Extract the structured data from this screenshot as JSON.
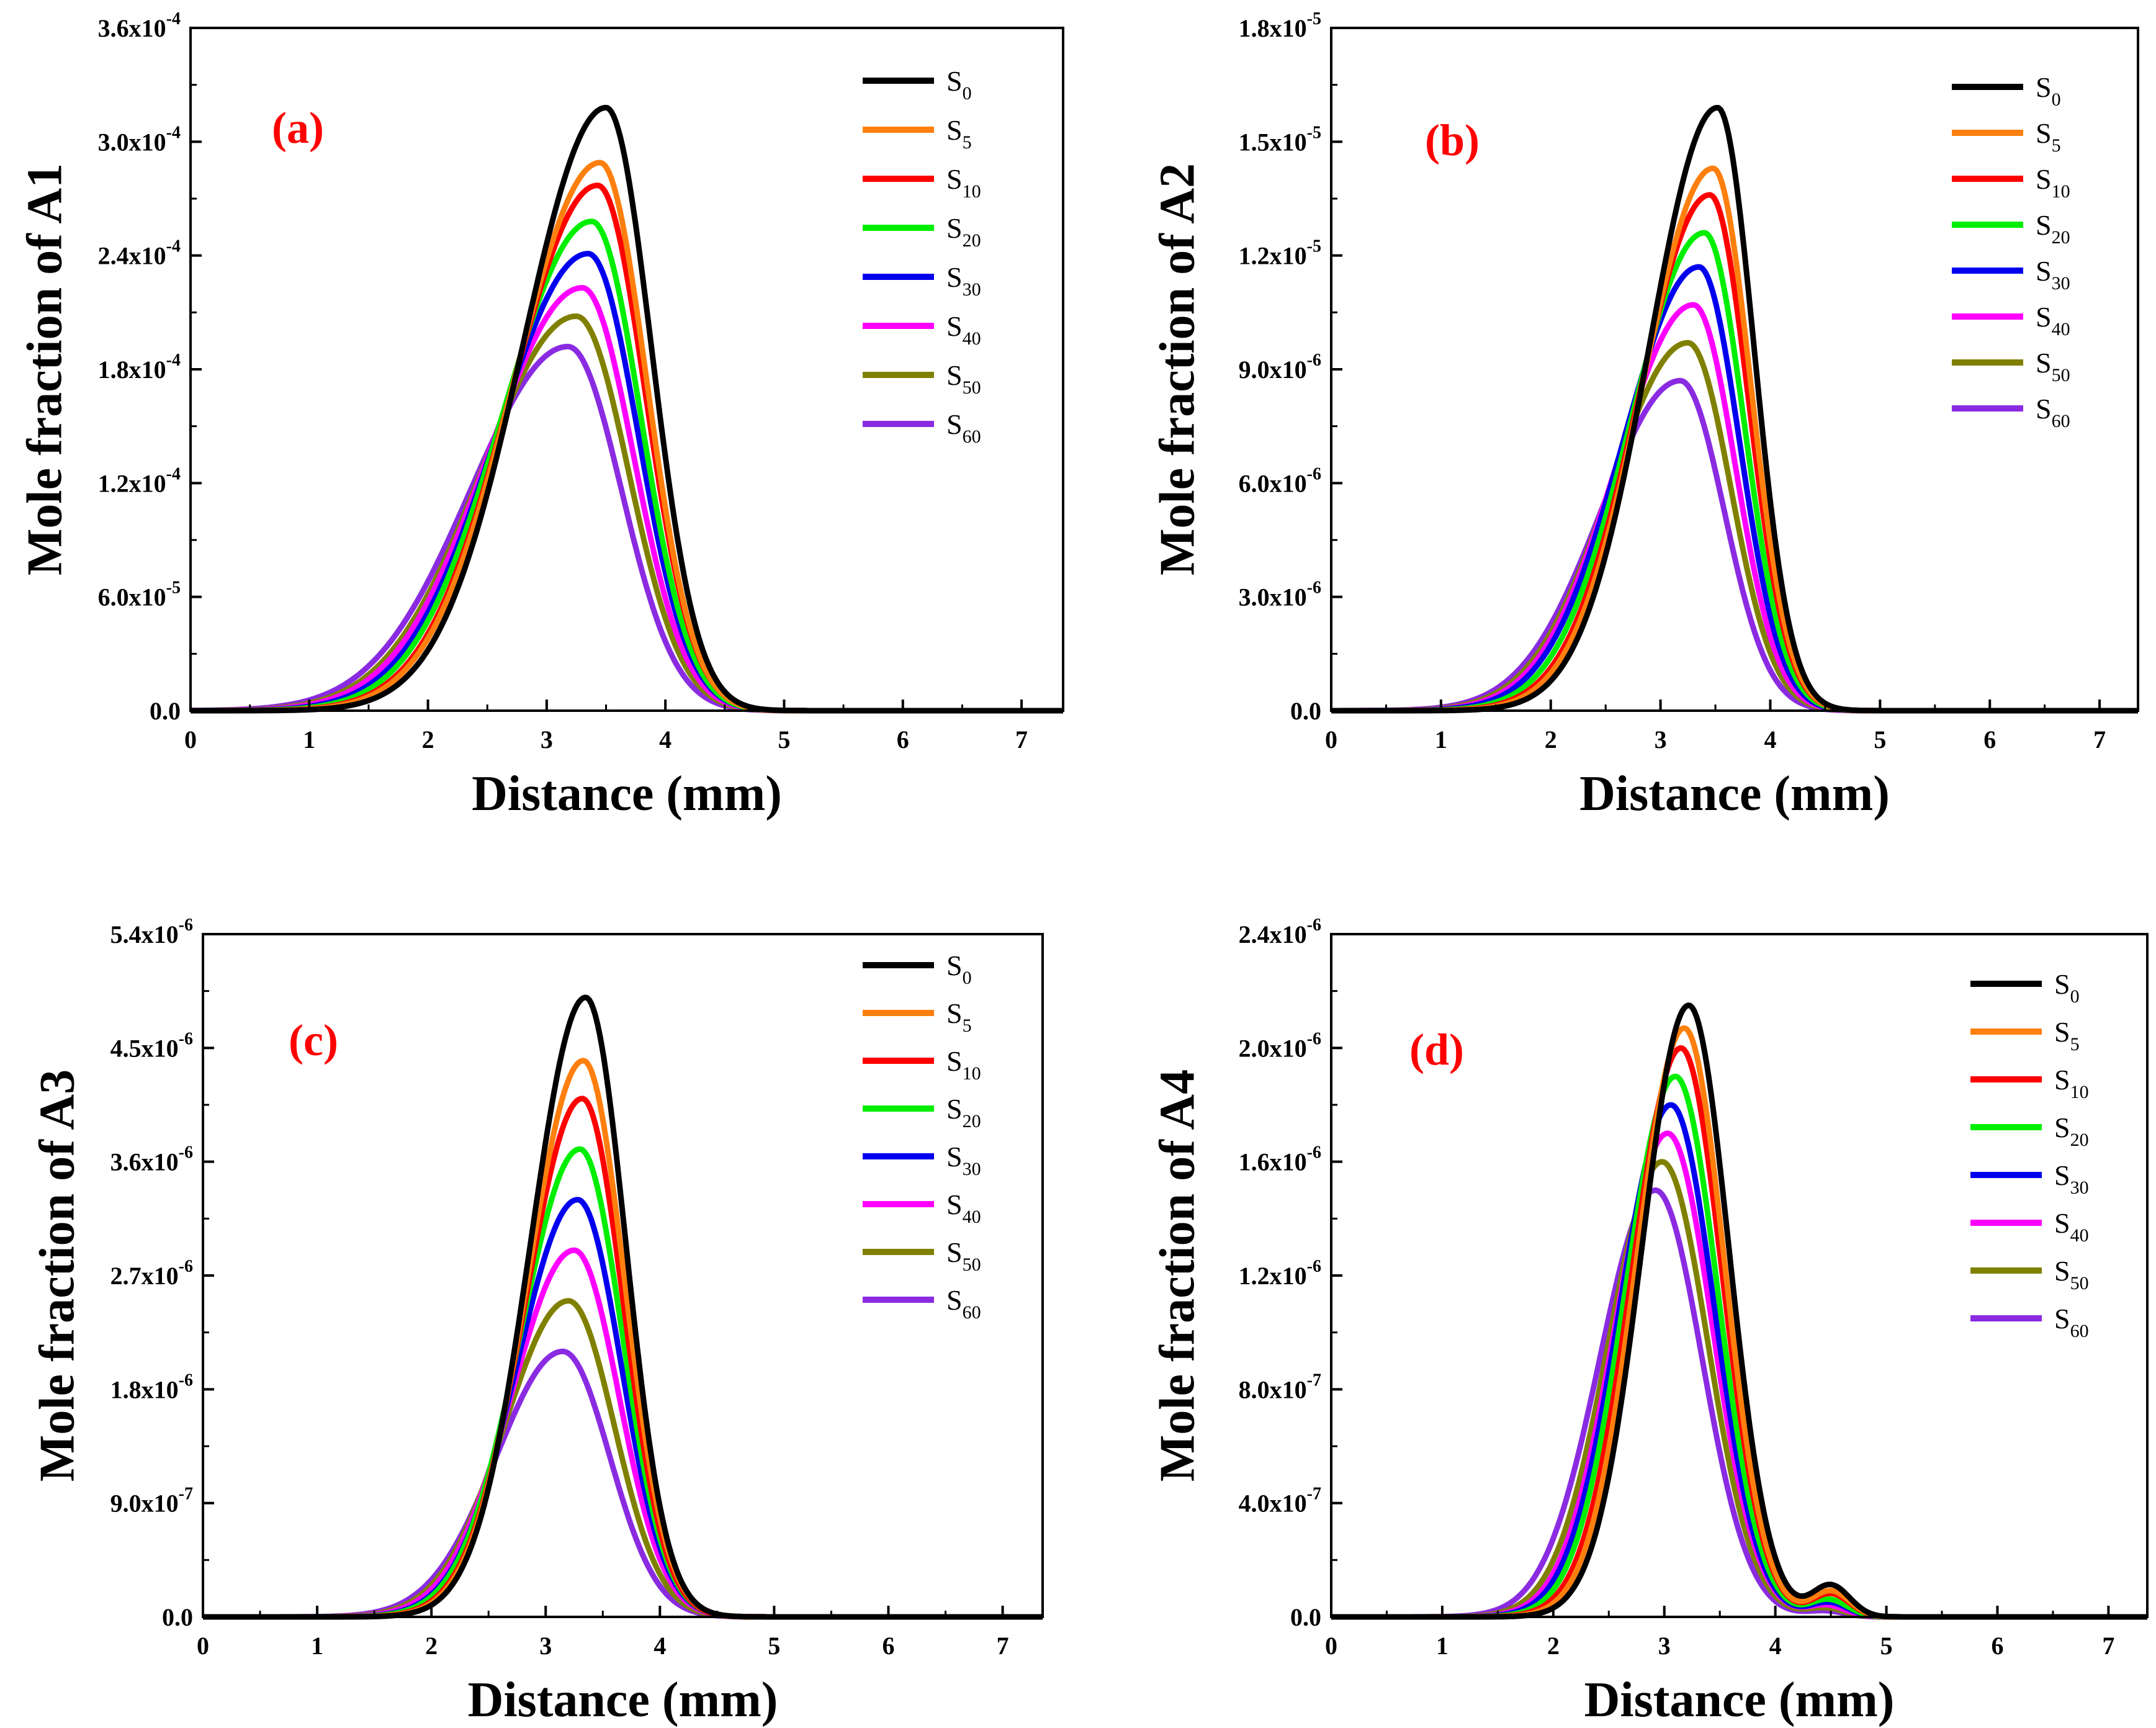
{
  "chart_data": [
    {
      "type": "line",
      "panel_label": "(a)",
      "xlabel": "Distance (mm)",
      "ylabel": "Mole fraction of A1",
      "xlim": [
        0,
        7.35
      ],
      "ylim": [
        0,
        0.00036
      ],
      "xticks": [
        "0",
        "1",
        "2",
        "3",
        "4",
        "5",
        "6",
        "7"
      ],
      "yticks": [
        {
          "value": 0,
          "base": "0.0",
          "exp": ""
        },
        {
          "value": 6e-05,
          "base": "6.0x10",
          "exp": "-5"
        },
        {
          "value": 0.00012,
          "base": "1.2x10",
          "exp": "-4"
        },
        {
          "value": 0.00018,
          "base": "1.8x10",
          "exp": "-4"
        },
        {
          "value": 0.00024,
          "base": "2.4x10",
          "exp": "-4"
        },
        {
          "value": 0.0003,
          "base": "3.0x10",
          "exp": "-4"
        },
        {
          "value": 0.00036,
          "base": "3.6x10",
          "exp": "-4"
        }
      ],
      "series": [
        {
          "name": "S0",
          "label": "S",
          "sub": "0",
          "color": "#000000",
          "peak_x": 3.5,
          "peak_y": 0.000318,
          "sigma_left": 0.7,
          "sigma_right": 0.38
        },
        {
          "name": "S5",
          "label": "S",
          "sub": "5",
          "color": "#ff7f0e",
          "peak_x": 3.45,
          "peak_y": 0.000289,
          "sigma_left": 0.72,
          "sigma_right": 0.39
        },
        {
          "name": "S10",
          "label": "S",
          "sub": "10",
          "color": "#ff0000",
          "peak_x": 3.43,
          "peak_y": 0.000277,
          "sigma_left": 0.73,
          "sigma_right": 0.4
        },
        {
          "name": "S20",
          "label": "S",
          "sub": "20",
          "color": "#00ee00",
          "peak_x": 3.38,
          "peak_y": 0.000258,
          "sigma_left": 0.75,
          "sigma_right": 0.41
        },
        {
          "name": "S30",
          "label": "S",
          "sub": "30",
          "color": "#0000ee",
          "peak_x": 3.35,
          "peak_y": 0.000241,
          "sigma_left": 0.77,
          "sigma_right": 0.42
        },
        {
          "name": "S40",
          "label": "S",
          "sub": "40",
          "color": "#ff00ff",
          "peak_x": 3.3,
          "peak_y": 0.000223,
          "sigma_left": 0.79,
          "sigma_right": 0.43
        },
        {
          "name": "S50",
          "label": "S",
          "sub": "50",
          "color": "#808000",
          "peak_x": 3.25,
          "peak_y": 0.000208,
          "sigma_left": 0.8,
          "sigma_right": 0.44
        },
        {
          "name": "S60",
          "label": "S",
          "sub": "60",
          "color": "#8a2be2",
          "peak_x": 3.18,
          "peak_y": 0.000192,
          "sigma_left": 0.82,
          "sigma_right": 0.45
        }
      ]
    },
    {
      "type": "line",
      "panel_label": "(b)",
      "xlabel": "Distance (mm)",
      "ylabel": "Mole fraction of A2",
      "xlim": [
        0,
        7.35
      ],
      "ylim": [
        0,
        1.8e-05
      ],
      "xticks": [
        "0",
        "1",
        "2",
        "3",
        "4",
        "5",
        "6",
        "7"
      ],
      "yticks": [
        {
          "value": 0,
          "base": "0.0",
          "exp": ""
        },
        {
          "value": 3e-06,
          "base": "3.0x10",
          "exp": "-6"
        },
        {
          "value": 6e-06,
          "base": "6.0x10",
          "exp": "-6"
        },
        {
          "value": 9e-06,
          "base": "9.0x10",
          "exp": "-6"
        },
        {
          "value": 1.2e-05,
          "base": "1.2x10",
          "exp": "-5"
        },
        {
          "value": 1.5e-05,
          "base": "1.5x10",
          "exp": "-5"
        },
        {
          "value": 1.8e-05,
          "base": "1.8x10",
          "exp": "-5"
        }
      ],
      "series": [
        {
          "name": "S0",
          "label": "S",
          "sub": "0",
          "color": "#000000",
          "peak_x": 3.52,
          "peak_y": 1.59e-05,
          "sigma_left": 0.62,
          "sigma_right": 0.33
        },
        {
          "name": "S5",
          "label": "S",
          "sub": "5",
          "color": "#ff7f0e",
          "peak_x": 3.48,
          "peak_y": 1.43e-05,
          "sigma_left": 0.64,
          "sigma_right": 0.34
        },
        {
          "name": "S10",
          "label": "S",
          "sub": "10",
          "color": "#ff0000",
          "peak_x": 3.45,
          "peak_y": 1.36e-05,
          "sigma_left": 0.65,
          "sigma_right": 0.35
        },
        {
          "name": "S20",
          "label": "S",
          "sub": "20",
          "color": "#00ee00",
          "peak_x": 3.4,
          "peak_y": 1.26e-05,
          "sigma_left": 0.67,
          "sigma_right": 0.36
        },
        {
          "name": "S30",
          "label": "S",
          "sub": "30",
          "color": "#0000ee",
          "peak_x": 3.35,
          "peak_y": 1.17e-05,
          "sigma_left": 0.69,
          "sigma_right": 0.37
        },
        {
          "name": "S40",
          "label": "S",
          "sub": "40",
          "color": "#ff00ff",
          "peak_x": 3.3,
          "peak_y": 1.07e-05,
          "sigma_left": 0.7,
          "sigma_right": 0.38
        },
        {
          "name": "S50",
          "label": "S",
          "sub": "50",
          "color": "#808000",
          "peak_x": 3.25,
          "peak_y": 9.7e-06,
          "sigma_left": 0.71,
          "sigma_right": 0.39
        },
        {
          "name": "S60",
          "label": "S",
          "sub": "60",
          "color": "#8a2be2",
          "peak_x": 3.18,
          "peak_y": 8.7e-06,
          "sigma_left": 0.72,
          "sigma_right": 0.4
        }
      ]
    },
    {
      "type": "line",
      "panel_label": "(c)",
      "xlabel": "Distance (mm)",
      "ylabel": "Mole fraction of A3",
      "xlim": [
        0,
        7.35
      ],
      "ylim": [
        0,
        5.4e-06
      ],
      "xticks": [
        "0",
        "1",
        "2",
        "3",
        "4",
        "5",
        "6",
        "7"
      ],
      "yticks": [
        {
          "value": 0,
          "base": "0.0",
          "exp": ""
        },
        {
          "value": 9e-07,
          "base": "9.0x10",
          "exp": "-7"
        },
        {
          "value": 1.8e-06,
          "base": "1.8x10",
          "exp": "-6"
        },
        {
          "value": 2.7e-06,
          "base": "2.7x10",
          "exp": "-6"
        },
        {
          "value": 3.6e-06,
          "base": "3.6x10",
          "exp": "-6"
        },
        {
          "value": 4.5e-06,
          "base": "4.5x10",
          "exp": "-6"
        },
        {
          "value": 5.4e-06,
          "base": "5.4x10",
          "exp": "-6"
        }
      ],
      "series": [
        {
          "name": "S0",
          "label": "S",
          "sub": "0",
          "color": "#000000",
          "peak_x": 3.35,
          "peak_y": 4.9e-06,
          "sigma_left": 0.48,
          "sigma_right": 0.35
        },
        {
          "name": "S5",
          "label": "S",
          "sub": "5",
          "color": "#ff7f0e",
          "peak_x": 3.33,
          "peak_y": 4.4e-06,
          "sigma_left": 0.49,
          "sigma_right": 0.36
        },
        {
          "name": "S10",
          "label": "S",
          "sub": "10",
          "color": "#ff0000",
          "peak_x": 3.32,
          "peak_y": 4.1e-06,
          "sigma_left": 0.5,
          "sigma_right": 0.36
        },
        {
          "name": "S20",
          "label": "S",
          "sub": "20",
          "color": "#00ee00",
          "peak_x": 3.3,
          "peak_y": 3.7e-06,
          "sigma_left": 0.52,
          "sigma_right": 0.37
        },
        {
          "name": "S30",
          "label": "S",
          "sub": "30",
          "color": "#0000ee",
          "peak_x": 3.28,
          "peak_y": 3.3e-06,
          "sigma_left": 0.53,
          "sigma_right": 0.38
        },
        {
          "name": "S40",
          "label": "S",
          "sub": "40",
          "color": "#ff00ff",
          "peak_x": 3.25,
          "peak_y": 2.9e-06,
          "sigma_left": 0.55,
          "sigma_right": 0.39
        },
        {
          "name": "S50",
          "label": "S",
          "sub": "50",
          "color": "#808000",
          "peak_x": 3.2,
          "peak_y": 2.5e-06,
          "sigma_left": 0.56,
          "sigma_right": 0.4
        },
        {
          "name": "S60",
          "label": "S",
          "sub": "60",
          "color": "#8a2be2",
          "peak_x": 3.15,
          "peak_y": 2.1e-06,
          "sigma_left": 0.58,
          "sigma_right": 0.41
        }
      ]
    },
    {
      "type": "line",
      "panel_label": "(d)",
      "xlabel": "Distance (mm)",
      "ylabel": "Mole fraction of A4",
      "xlim": [
        0,
        7.35
      ],
      "ylim": [
        0,
        2.4e-06
      ],
      "xticks": [
        "0",
        "1",
        "2",
        "3",
        "4",
        "5",
        "6",
        "7"
      ],
      "yticks": [
        {
          "value": 0,
          "base": "0.0",
          "exp": ""
        },
        {
          "value": 4e-07,
          "base": "4.0x10",
          "exp": "-7"
        },
        {
          "value": 8e-07,
          "base": "8.0x10",
          "exp": "-7"
        },
        {
          "value": 1.2e-06,
          "base": "1.2x10",
          "exp": "-6"
        },
        {
          "value": 1.6e-06,
          "base": "1.6x10",
          "exp": "-6"
        },
        {
          "value": 2e-06,
          "base": "2.0x10",
          "exp": "-6"
        },
        {
          "value": 2.4e-06,
          "base": "2.4x10",
          "exp": "-6"
        }
      ],
      "series": [
        {
          "name": "S0",
          "label": "S",
          "sub": "0",
          "color": "#000000",
          "peak_x": 3.22,
          "peak_y": 2.15e-06,
          "sigma_left": 0.42,
          "sigma_right": 0.36,
          "bump_x": 4.5,
          "bump_y": 1.1e-07
        },
        {
          "name": "S5",
          "label": "S",
          "sub": "5",
          "color": "#ff7f0e",
          "peak_x": 3.18,
          "peak_y": 2.07e-06,
          "sigma_left": 0.43,
          "sigma_right": 0.36,
          "bump_x": 4.5,
          "bump_y": 9e-08
        },
        {
          "name": "S10",
          "label": "S",
          "sub": "10",
          "color": "#ff0000",
          "peak_x": 3.15,
          "peak_y": 2e-06,
          "sigma_left": 0.44,
          "sigma_right": 0.37,
          "bump_x": 4.5,
          "bump_y": 8e-08
        },
        {
          "name": "S20",
          "label": "S",
          "sub": "20",
          "color": "#00ee00",
          "peak_x": 3.1,
          "peak_y": 1.9e-06,
          "sigma_left": 0.45,
          "sigma_right": 0.38,
          "bump_x": 4.48,
          "bump_y": 6e-08
        },
        {
          "name": "S30",
          "label": "S",
          "sub": "30",
          "color": "#0000ee",
          "peak_x": 3.06,
          "peak_y": 1.8e-06,
          "sigma_left": 0.46,
          "sigma_right": 0.39,
          "bump_x": 4.48,
          "bump_y": 5e-08
        },
        {
          "name": "S40",
          "label": "S",
          "sub": "40",
          "color": "#ff00ff",
          "peak_x": 3.03,
          "peak_y": 1.7e-06,
          "sigma_left": 0.47,
          "sigma_right": 0.4,
          "bump_x": 4.46,
          "bump_y": 4e-08
        },
        {
          "name": "S50",
          "label": "S",
          "sub": "50",
          "color": "#808000",
          "peak_x": 2.98,
          "peak_y": 1.6e-06,
          "sigma_left": 0.48,
          "sigma_right": 0.41,
          "bump_x": 4.45,
          "bump_y": 3e-08
        },
        {
          "name": "S60",
          "label": "S",
          "sub": "60",
          "color": "#8a2be2",
          "peak_x": 2.92,
          "peak_y": 1.5e-06,
          "sigma_left": 0.5,
          "sigma_right": 0.42,
          "bump_x": 4.45,
          "bump_y": 2e-08
        }
      ]
    }
  ]
}
